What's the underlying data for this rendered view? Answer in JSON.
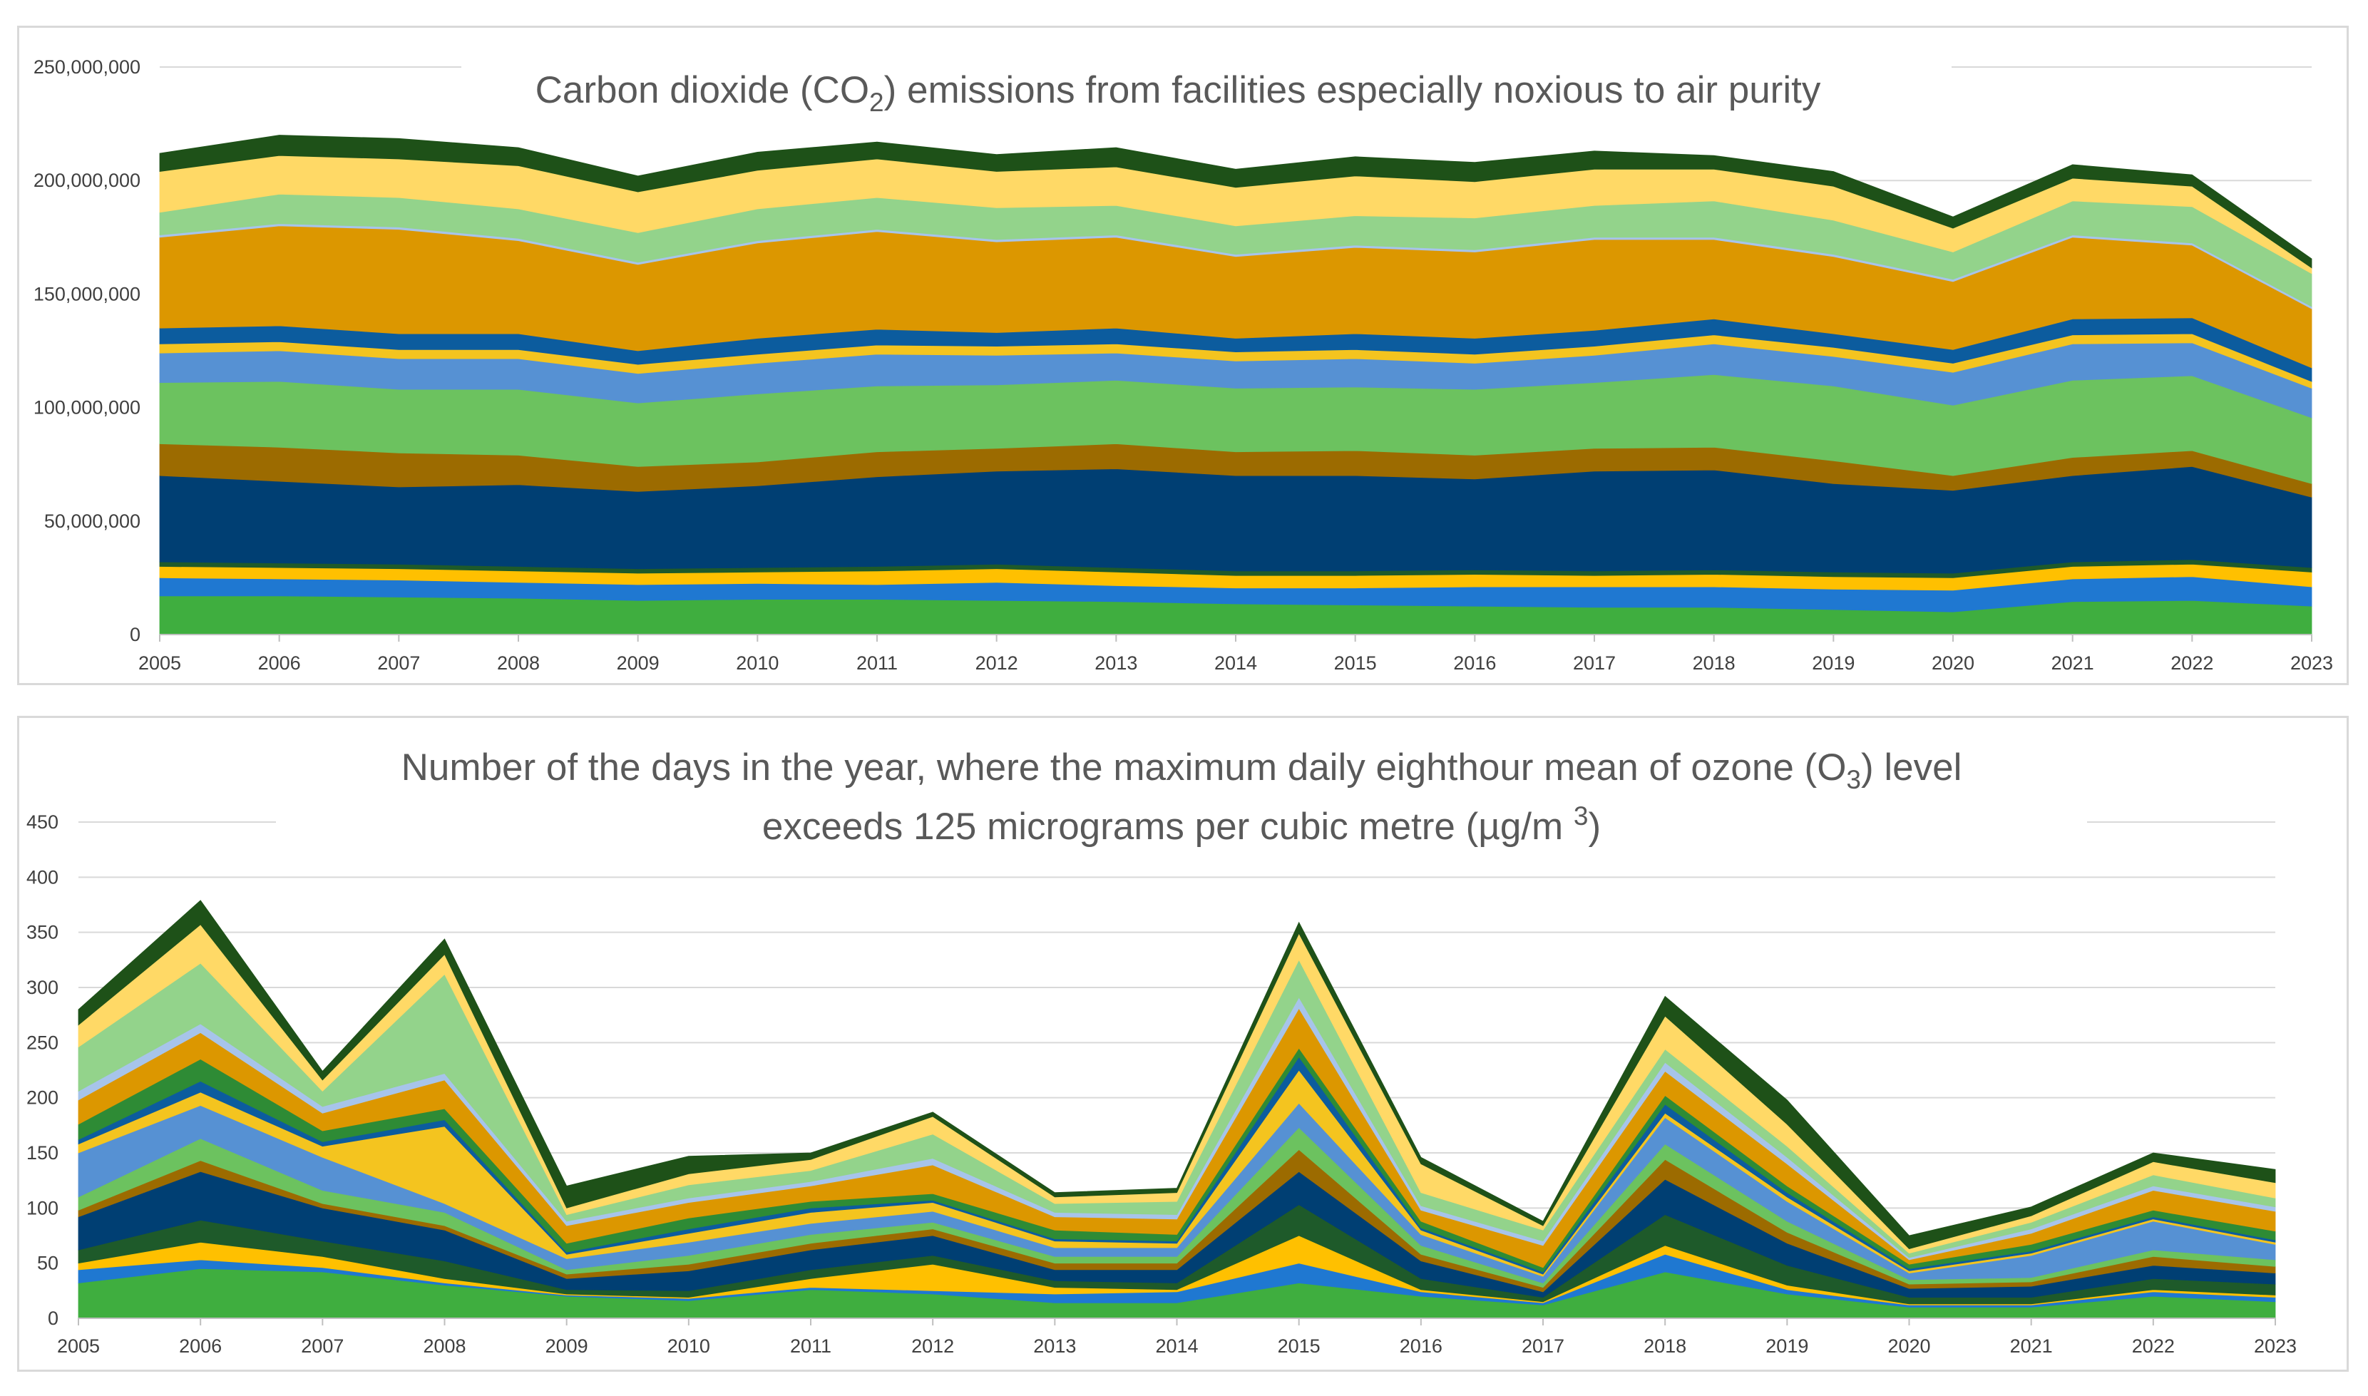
{
  "chart_data": [
    {
      "type": "area",
      "stacked": true,
      "title": "Carbon dioxide (CO2) emissions from facilities especially noxious to air purity",
      "title_parts": {
        "before": "Carbon dioxide (CO",
        "subscript": "2",
        "after": ") emissions from facilities especially noxious to air purity"
      },
      "x": [
        "2005",
        "2006",
        "2007",
        "2008",
        "2009",
        "2010",
        "2011",
        "2012",
        "2013",
        "2014",
        "2015",
        "2016",
        "2017",
        "2018",
        "2019",
        "2020",
        "2021",
        "2022",
        "2023"
      ],
      "ylim": [
        0,
        250000000
      ],
      "yticks": [
        0,
        50000000,
        100000000,
        150000000,
        200000000,
        250000000
      ],
      "ytick_labels": [
        "0",
        "50,000,000",
        "100,000,000",
        "150,000,000",
        "200,000,000",
        "250,000,000"
      ],
      "grid": true,
      "series": [
        {
          "color": "#3fae3f",
          "values": [
            17000000,
            17000000,
            16500000,
            16000000,
            15000000,
            15500000,
            15500000,
            15000000,
            14500000,
            13500000,
            13000000,
            12500000,
            12000000,
            12000000,
            11000000,
            10000000,
            14500000,
            15000000,
            12500000
          ]
        },
        {
          "color": "#1f78d1",
          "values": [
            8000000,
            7500000,
            7500000,
            7000000,
            7000000,
            7000000,
            6500000,
            8000000,
            7000000,
            7000000,
            7500000,
            8500000,
            9000000,
            9000000,
            9000000,
            9500000,
            10000000,
            10500000,
            8500000
          ]
        },
        {
          "color": "#ffc000",
          "values": [
            5000000,
            5000000,
            5000000,
            5000000,
            5000000,
            5000000,
            6000000,
            6000000,
            6000000,
            5500000,
            5500000,
            5500000,
            5000000,
            5500000,
            5500000,
            5500000,
            5500000,
            5500000,
            6500000
          ]
        },
        {
          "color": "#1e5a2a",
          "values": [
            2000000,
            2000000,
            2000000,
            2000000,
            2000000,
            2000000,
            2000000,
            2000000,
            2000000,
            2000000,
            2000000,
            2000000,
            2000000,
            2000000,
            2000000,
            2000000,
            2000000,
            2000000,
            2000000
          ]
        },
        {
          "color": "#003f73",
          "values": [
            38000000,
            36000000,
            34000000,
            36000000,
            34000000,
            36000000,
            39500000,
            41000000,
            43500000,
            42000000,
            42000000,
            40000000,
            44000000,
            44000000,
            39000000,
            36500000,
            38000000,
            41000000,
            31000000
          ]
        },
        {
          "color": "#9c6b00",
          "values": [
            14000000,
            15000000,
            15000000,
            13000000,
            11000000,
            10500000,
            11000000,
            10000000,
            11000000,
            10500000,
            11000000,
            10500000,
            10000000,
            10000000,
            10000000,
            6500000,
            8000000,
            7000000,
            6000000
          ]
        },
        {
          "color": "#6cc25f",
          "values": [
            27000000,
            29000000,
            28000000,
            29000000,
            28000000,
            30000000,
            29000000,
            28000000,
            28000000,
            28000000,
            28000000,
            29000000,
            29000000,
            32000000,
            33000000,
            31000000,
            34000000,
            33000000,
            29000000
          ]
        },
        {
          "color": "#5691d3",
          "values": [
            13000000,
            13500000,
            13500000,
            13500000,
            13000000,
            13500000,
            14000000,
            13000000,
            12000000,
            12000000,
            12500000,
            11500000,
            12000000,
            13500000,
            13000000,
            14500000,
            16000000,
            14500000,
            13000000
          ]
        },
        {
          "color": "#f4c41f",
          "values": [
            4000000,
            4000000,
            4000000,
            4000000,
            4000000,
            4000000,
            4000000,
            4000000,
            4000000,
            4000000,
            4000000,
            4000000,
            4000000,
            4000000,
            4000000,
            4000000,
            4000000,
            4000000,
            3000000
          ]
        },
        {
          "color": "#0c5c9e",
          "values": [
            7000000,
            7000000,
            7000000,
            7000000,
            6000000,
            7000000,
            7000000,
            6000000,
            7000000,
            6000000,
            7000000,
            7000000,
            7000000,
            7000000,
            6000000,
            6000000,
            7000000,
            7000000,
            6000000
          ]
        },
        {
          "color": "#dc9700",
          "values": [
            40000000,
            44000000,
            46000000,
            41000000,
            38000000,
            42000000,
            43000000,
            40000000,
            40000000,
            36000000,
            38000000,
            38000000,
            40000000,
            35000000,
            34000000,
            30000000,
            36000000,
            32000000,
            26000000
          ]
        },
        {
          "color": "#a7c4ea",
          "values": [
            1000000,
            1000000,
            1000000,
            1000000,
            1000000,
            1000000,
            1000000,
            1000000,
            1000000,
            1000000,
            1000000,
            1000000,
            1000000,
            1000000,
            1000000,
            1000000,
            1000000,
            1000000,
            1000000
          ]
        },
        {
          "color": "#93d38b",
          "values": [
            10000000,
            13000000,
            13000000,
            13000000,
            13000000,
            14000000,
            14000000,
            14000000,
            13000000,
            12500000,
            13000000,
            14000000,
            14000000,
            16000000,
            15000000,
            12000000,
            15000000,
            16000000,
            14500000
          ]
        },
        {
          "color": "#ffd966",
          "values": [
            18000000,
            17000000,
            17000000,
            19000000,
            18000000,
            17000000,
            17000000,
            16000000,
            17000000,
            17000000,
            17500000,
            16000000,
            16000000,
            14000000,
            15000000,
            10500000,
            10000000,
            9000000,
            2500000
          ]
        },
        {
          "color": "#1e5118",
          "values": [
            8000000,
            9000000,
            9000000,
            8000000,
            7000000,
            8000000,
            7500000,
            7500000,
            8500000,
            8000000,
            8500000,
            8500000,
            8000000,
            6000000,
            6500000,
            5000000,
            6000000,
            5000000,
            4000000
          ]
        }
      ]
    },
    {
      "type": "area",
      "stacked": true,
      "title": "Number of the days in the year, where the maximum daily eighthour mean of ozone (O3) level exceeds 125 micrograms per cubic metre (µg/m 3)",
      "title_parts": {
        "line1_before": "Number of the days in the year, where the maximum daily eighthour mean of ozone (O",
        "line1_subscript": "3",
        "line1_after": ") level",
        "line2_before": "exceeds 125 micrograms per cubic metre (µg/m ",
        "line2_superscript": "3",
        "line2_after": ")"
      },
      "x": [
        "2005",
        "2006",
        "2007",
        "2008",
        "2009",
        "2010",
        "2011",
        "2012",
        "2013",
        "2014",
        "2015",
        "2016",
        "2017",
        "2018",
        "2019",
        "2020",
        "2021",
        "2022",
        "2023"
      ],
      "ylim": [
        0,
        450
      ],
      "yticks": [
        0,
        50,
        100,
        150,
        200,
        250,
        300,
        350,
        400,
        450
      ],
      "ytick_labels": [
        "0",
        "50",
        "100",
        "150",
        "200",
        "250",
        "300",
        "350",
        "400",
        "450"
      ],
      "grid": true,
      "series": [
        {
          "color": "#3fae3f",
          "values": [
            32,
            45,
            42,
            30,
            20,
            16,
            26,
            22,
            14,
            14,
            32,
            20,
            12,
            42,
            22,
            10,
            10,
            20,
            15
          ]
        },
        {
          "color": "#1f78d1",
          "values": [
            12,
            8,
            4,
            2,
            1,
            2,
            2,
            3,
            8,
            10,
            18,
            4,
            2,
            16,
            4,
            2,
            2,
            4,
            4
          ]
        },
        {
          "color": "#ffc000",
          "values": [
            6,
            16,
            10,
            4,
            1,
            1,
            8,
            24,
            6,
            2,
            25,
            2,
            1,
            8,
            4,
            1,
            1,
            2,
            2
          ]
        },
        {
          "color": "#1e5a2a",
          "values": [
            12,
            20,
            14,
            16,
            4,
            6,
            8,
            8,
            6,
            6,
            28,
            10,
            4,
            28,
            18,
            6,
            6,
            10,
            10
          ]
        },
        {
          "color": "#003f73",
          "values": [
            30,
            44,
            30,
            28,
            10,
            18,
            18,
            18,
            10,
            12,
            30,
            16,
            5,
            32,
            20,
            8,
            10,
            12,
            10
          ]
        },
        {
          "color": "#9c6b00",
          "values": [
            6,
            10,
            4,
            4,
            4,
            6,
            6,
            6,
            6,
            6,
            20,
            6,
            4,
            18,
            10,
            4,
            4,
            8,
            6
          ]
        },
        {
          "color": "#6cc25f",
          "values": [
            12,
            20,
            12,
            12,
            4,
            8,
            8,
            6,
            6,
            6,
            20,
            8,
            4,
            14,
            10,
            4,
            4,
            6,
            6
          ]
        },
        {
          "color": "#5691d3",
          "values": [
            40,
            30,
            30,
            8,
            10,
            12,
            10,
            10,
            8,
            8,
            22,
            10,
            6,
            24,
            18,
            6,
            20,
            26,
            14
          ]
        },
        {
          "color": "#f4c41f",
          "values": [
            8,
            12,
            10,
            70,
            4,
            8,
            10,
            8,
            6,
            4,
            30,
            4,
            2,
            4,
            4,
            2,
            2,
            2,
            2
          ]
        },
        {
          "color": "#0c5c9e",
          "values": [
            4,
            10,
            4,
            6,
            2,
            4,
            4,
            2,
            2,
            2,
            12,
            2,
            2,
            8,
            4,
            2,
            2,
            2,
            2
          ]
        },
        {
          "color": "#2e8b35",
          "values": [
            14,
            20,
            10,
            10,
            8,
            10,
            6,
            6,
            8,
            6,
            8,
            6,
            4,
            8,
            6,
            4,
            6,
            6,
            8
          ]
        },
        {
          "color": "#dc9700",
          "values": [
            22,
            24,
            16,
            26,
            16,
            14,
            14,
            26,
            12,
            14,
            36,
            10,
            20,
            22,
            20,
            4,
            10,
            18,
            18
          ]
        },
        {
          "color": "#a7c4ea",
          "values": [
            8,
            8,
            6,
            6,
            4,
            4,
            4,
            6,
            4,
            4,
            10,
            4,
            4,
            8,
            6,
            2,
            4,
            4,
            4
          ]
        },
        {
          "color": "#93d38b",
          "values": [
            40,
            55,
            14,
            90,
            6,
            12,
            10,
            22,
            8,
            12,
            34,
            12,
            10,
            12,
            10,
            4,
            6,
            10,
            8
          ]
        },
        {
          "color": "#ffd966",
          "values": [
            20,
            35,
            10,
            18,
            6,
            10,
            10,
            16,
            6,
            8,
            24,
            26,
            4,
            30,
            20,
            4,
            6,
            12,
            14
          ]
        },
        {
          "color": "#1e5118",
          "values": [
            14,
            22,
            8,
            14,
            20,
            16,
            6,
            4,
            4,
            4,
            10,
            6,
            4,
            18,
            22,
            12,
            8,
            8,
            12
          ]
        }
      ]
    }
  ]
}
